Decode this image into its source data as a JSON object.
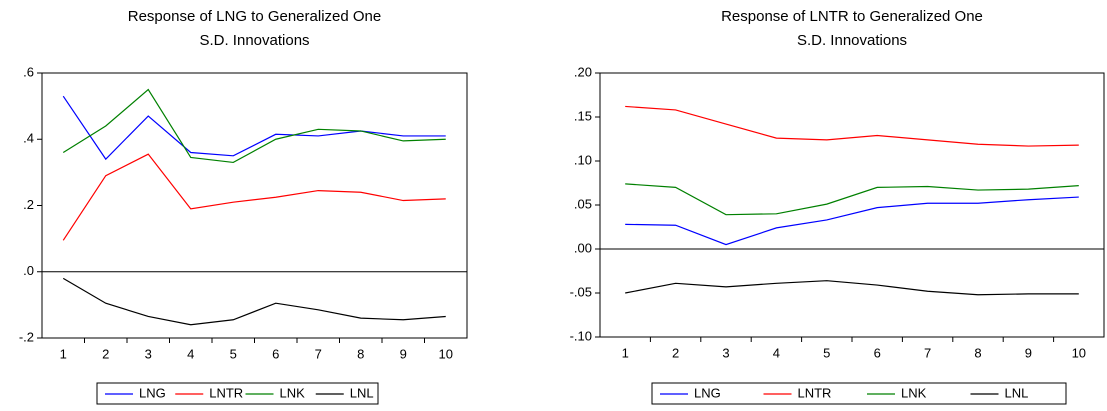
{
  "chart_data": [
    {
      "type": "line",
      "title": [
        "Response of LNG to Generalized One",
        "S.D. Innovations"
      ],
      "categories": [
        "1",
        "2",
        "3",
        "4",
        "5",
        "6",
        "7",
        "8",
        "9",
        "10"
      ],
      "ylim": [
        -0.2,
        0.6
      ],
      "yticks": [
        {
          "value": -0.2,
          "label": "-.2"
        },
        {
          "value": 0.0,
          "label": ".0"
        },
        {
          "value": 0.2,
          "label": ".2"
        },
        {
          "value": 0.4,
          "label": ".4"
        },
        {
          "value": 0.6,
          "label": ".6"
        }
      ],
      "zero_line": true,
      "series": [
        {
          "name": "LNG",
          "color": "#0000ff",
          "values": [
            0.53,
            0.34,
            0.47,
            0.36,
            0.35,
            0.415,
            0.41,
            0.425,
            0.41,
            0.41
          ]
        },
        {
          "name": "LNTR",
          "color": "#ff0000",
          "values": [
            0.095,
            0.29,
            0.355,
            0.19,
            0.21,
            0.225,
            0.245,
            0.24,
            0.215,
            0.22
          ]
        },
        {
          "name": "LNK",
          "color": "#008000",
          "values": [
            0.36,
            0.44,
            0.55,
            0.345,
            0.33,
            0.4,
            0.43,
            0.425,
            0.395,
            0.4
          ]
        },
        {
          "name": "LNL",
          "color": "#000000",
          "values": [
            -0.02,
            -0.095,
            -0.135,
            -0.16,
            -0.145,
            -0.095,
            -0.115,
            -0.14,
            -0.145,
            -0.135
          ]
        }
      ]
    },
    {
      "type": "line",
      "title": [
        "Response of LNTR to Generalized One",
        "S.D. Innovations"
      ],
      "categories": [
        "1",
        "2",
        "3",
        "4",
        "5",
        "6",
        "7",
        "8",
        "9",
        "10"
      ],
      "ylim": [
        -0.1,
        0.2
      ],
      "yticks": [
        {
          "value": -0.1,
          "label": "-.10"
        },
        {
          "value": -0.05,
          "label": "-.05"
        },
        {
          "value": 0.0,
          "label": ".00"
        },
        {
          "value": 0.05,
          "label": ".05"
        },
        {
          "value": 0.1,
          "label": ".10"
        },
        {
          "value": 0.15,
          "label": ".15"
        },
        {
          "value": 0.2,
          "label": ".20"
        }
      ],
      "zero_line": true,
      "series": [
        {
          "name": "LNG",
          "color": "#0000ff",
          "values": [
            0.028,
            0.027,
            0.005,
            0.024,
            0.033,
            0.047,
            0.052,
            0.052,
            0.056,
            0.059
          ]
        },
        {
          "name": "LNTR",
          "color": "#ff0000",
          "values": [
            0.162,
            0.158,
            0.142,
            0.126,
            0.124,
            0.129,
            0.124,
            0.119,
            0.117,
            0.118
          ]
        },
        {
          "name": "LNK",
          "color": "#008000",
          "values": [
            0.074,
            0.07,
            0.039,
            0.04,
            0.051,
            0.07,
            0.071,
            0.067,
            0.068,
            0.072
          ]
        },
        {
          "name": "LNL",
          "color": "#000000",
          "values": [
            -0.05,
            -0.039,
            -0.043,
            -0.039,
            -0.036,
            -0.041,
            -0.048,
            -0.052,
            -0.051,
            -0.051
          ]
        }
      ]
    }
  ]
}
